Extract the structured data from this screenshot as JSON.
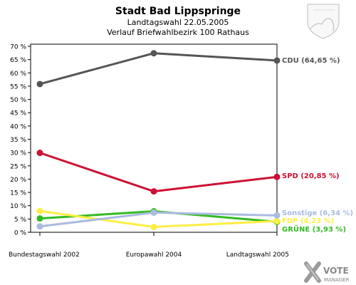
{
  "header": {
    "title": "Stadt Bad Lippspringe",
    "subtitle1": "Landtagswahl 22.05.2005",
    "subtitle2": "Verlauf Briefwahlbezirk 100 Rathaus"
  },
  "logo": {
    "line1": "VOTE",
    "line2": "MANAGER"
  },
  "chart_data": {
    "type": "line",
    "title": "Stadt Bad Lippspringe",
    "subtitle": "Landtagswahl 22.05.2005 · Verlauf Briefwahlbezirk 100 Rathaus",
    "x": [
      "Bundestagswahl 2002",
      "Europawahl 2004",
      "Landtagswahl 2005"
    ],
    "ylim": [
      0,
      70
    ],
    "yticks": [
      0,
      5,
      10,
      15,
      20,
      25,
      30,
      35,
      40,
      45,
      50,
      55,
      60,
      65,
      70
    ],
    "ytick_suffix": " %",
    "grid": false,
    "legend": "end-labels-right",
    "series": [
      {
        "name": "CDU",
        "label": "CDU (64,65 %)",
        "color": "#555555",
        "values": [
          55.8,
          67.4,
          64.65
        ]
      },
      {
        "name": "SPD",
        "label": "SPD (20,85 %)",
        "color": "#cc1133",
        "values": [
          29.9,
          15.4,
          20.85
        ]
      },
      {
        "name": "Sonstige",
        "label": "Sonstige (6,34 %)",
        "color": "#aabbe0",
        "values": [
          2.2,
          7.4,
          6.34
        ]
      },
      {
        "name": "FDP",
        "label": "FDP (4,23 %)",
        "color": "#ffee44",
        "values": [
          8.0,
          2.0,
          4.23
        ]
      },
      {
        "name": "GRÜNE",
        "label": "GRÜNE (3,93 %)",
        "color": "#33bb22",
        "values": [
          5.2,
          7.9,
          3.93
        ]
      }
    ]
  }
}
